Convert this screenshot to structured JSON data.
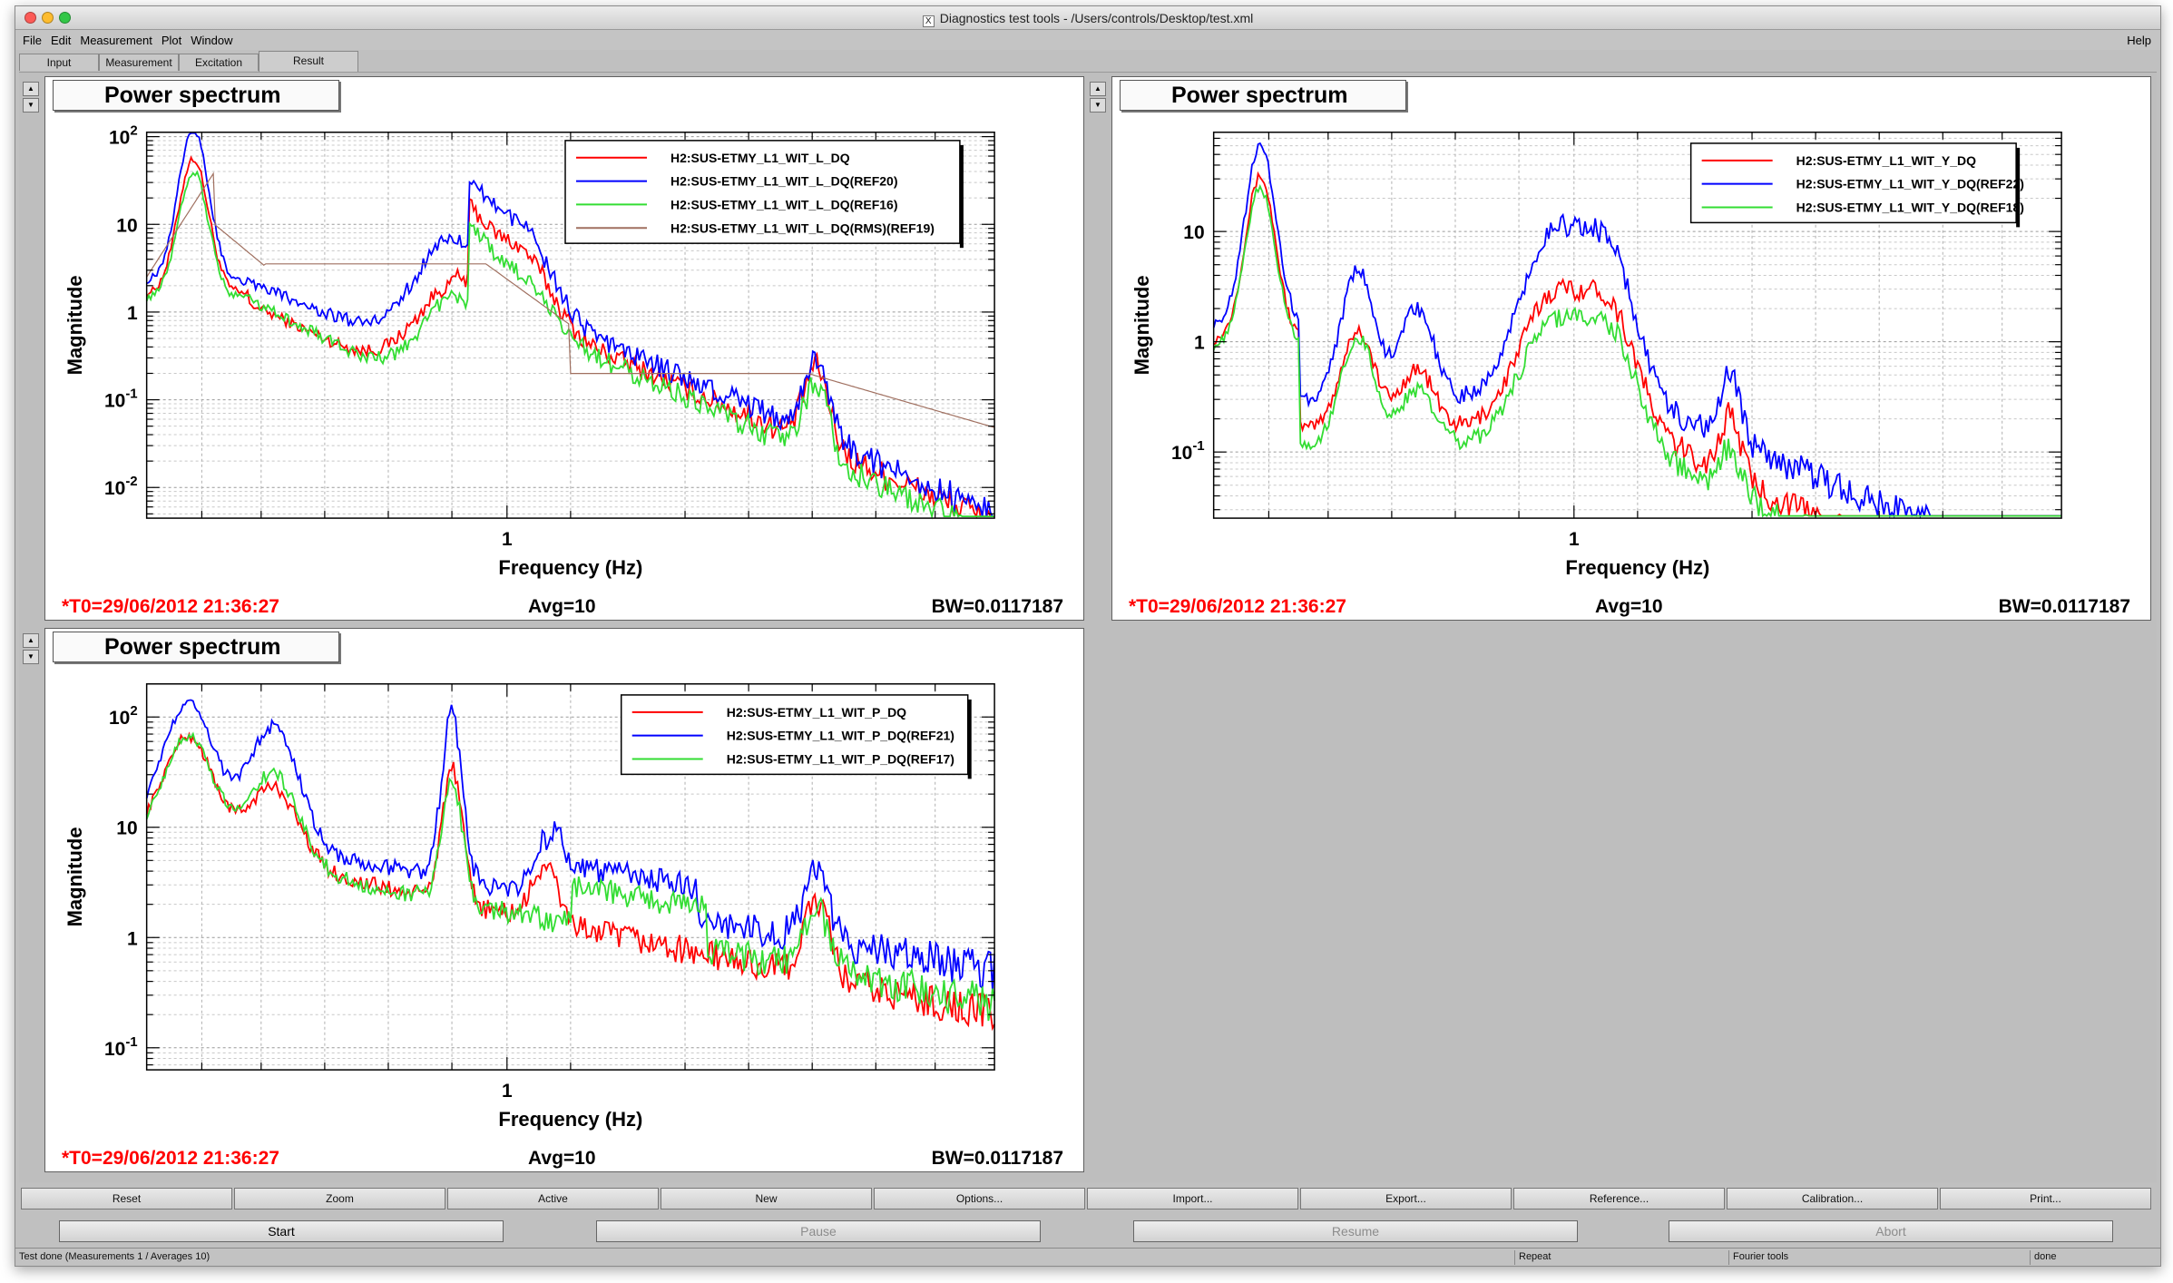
{
  "window": {
    "title": "Diagnostics test tools - /Users/controls/Desktop/test.xml",
    "traffic_lights": [
      "#fc5b57",
      "#fdbc2f",
      "#33c748"
    ]
  },
  "menu": {
    "items": [
      "File",
      "Edit",
      "Measurement",
      "Plot",
      "Window"
    ],
    "help": "Help"
  },
  "tabs": [
    {
      "label": "Input"
    },
    {
      "label": "Measurement"
    },
    {
      "label": "Excitation"
    },
    {
      "label": "Result",
      "active": true
    }
  ],
  "pad_controls": {
    "up": "▲",
    "down": "▼"
  },
  "panels": [
    {
      "title": "Power spectrum",
      "xlabel": "Frequency (Hz)",
      "ylabel": "Magnitude",
      "x_tick": "1",
      "y_ticks": [
        {
          "base": "10",
          "exp": "2",
          "value": 100
        },
        {
          "base": "10",
          "exp": "",
          "value": 10
        },
        {
          "base": "1",
          "exp": "",
          "value": 1
        },
        {
          "base": "10",
          "exp": "-1",
          "value": 0.1
        },
        {
          "base": "10",
          "exp": "-2",
          "value": 0.01
        }
      ],
      "t0": "*T0=29/06/2012 21:36:27",
      "avg": "Avg=10",
      "bw": "BW=0.0117187",
      "legend": [
        {
          "name": "H2:SUS-ETMY_L1_WIT_L_DQ",
          "color": "#ff0000"
        },
        {
          "name": "H2:SUS-ETMY_L1_WIT_L_DQ(REF20)",
          "color": "#0000ff"
        },
        {
          "name": "H2:SUS-ETMY_L1_WIT_L_DQ(REF16)",
          "color": "#33dd33"
        },
        {
          "name": "H2:SUS-ETMY_L1_WIT_L_DQ(RMS)(REF19)",
          "color": "#a07060"
        }
      ]
    },
    {
      "title": "Power spectrum",
      "xlabel": "Frequency (Hz)",
      "ylabel": "Magnitude",
      "x_tick": "1",
      "y_ticks": [
        {
          "base": "10",
          "exp": "",
          "value": 10
        },
        {
          "base": "1",
          "exp": "",
          "value": 1
        },
        {
          "base": "10",
          "exp": "-1",
          "value": 0.1
        }
      ],
      "t0": "*T0=29/06/2012 21:36:27",
      "avg": "Avg=10",
      "bw": "BW=0.0117187",
      "legend": [
        {
          "name": "H2:SUS-ETMY_L1_WIT_Y_DQ",
          "color": "#ff0000"
        },
        {
          "name": "H2:SUS-ETMY_L1_WIT_Y_DQ(REF22)",
          "color": "#0000ff"
        },
        {
          "name": "H2:SUS-ETMY_L1_WIT_Y_DQ(REF18)",
          "color": "#33dd33"
        }
      ]
    },
    {
      "title": "Power spectrum",
      "xlabel": "Frequency (Hz)",
      "ylabel": "Magnitude",
      "x_tick": "1",
      "y_ticks": [
        {
          "base": "10",
          "exp": "2",
          "value": 100
        },
        {
          "base": "10",
          "exp": "",
          "value": 10
        },
        {
          "base": "1",
          "exp": "",
          "value": 1
        },
        {
          "base": "10",
          "exp": "-1",
          "value": 0.1
        }
      ],
      "t0": "*T0=29/06/2012 21:36:27",
      "avg": "Avg=10",
      "bw": "BW=0.0117187",
      "legend": [
        {
          "name": "H2:SUS-ETMY_L1_WIT_P_DQ",
          "color": "#ff0000"
        },
        {
          "name": "H2:SUS-ETMY_L1_WIT_P_DQ(REF21)",
          "color": "#0000ff"
        },
        {
          "name": "H2:SUS-ETMY_L1_WIT_P_DQ(REF17)",
          "color": "#33dd33"
        }
      ]
    }
  ],
  "buttons": [
    "Reset",
    "Zoom",
    "Active",
    "New",
    "Options...",
    "Import...",
    "Export...",
    "Reference...",
    "Calibration...",
    "Print..."
  ],
  "controls": [
    {
      "label": "Start",
      "enabled": true
    },
    {
      "label": "Pause",
      "enabled": false
    },
    {
      "label": "Resume",
      "enabled": false
    },
    {
      "label": "Abort",
      "enabled": false
    }
  ],
  "status": {
    "message": "Test done (Measurements 1 / Averages 10)",
    "repeat": "Repeat",
    "fourier": "Fourier tools",
    "state": "done"
  }
}
